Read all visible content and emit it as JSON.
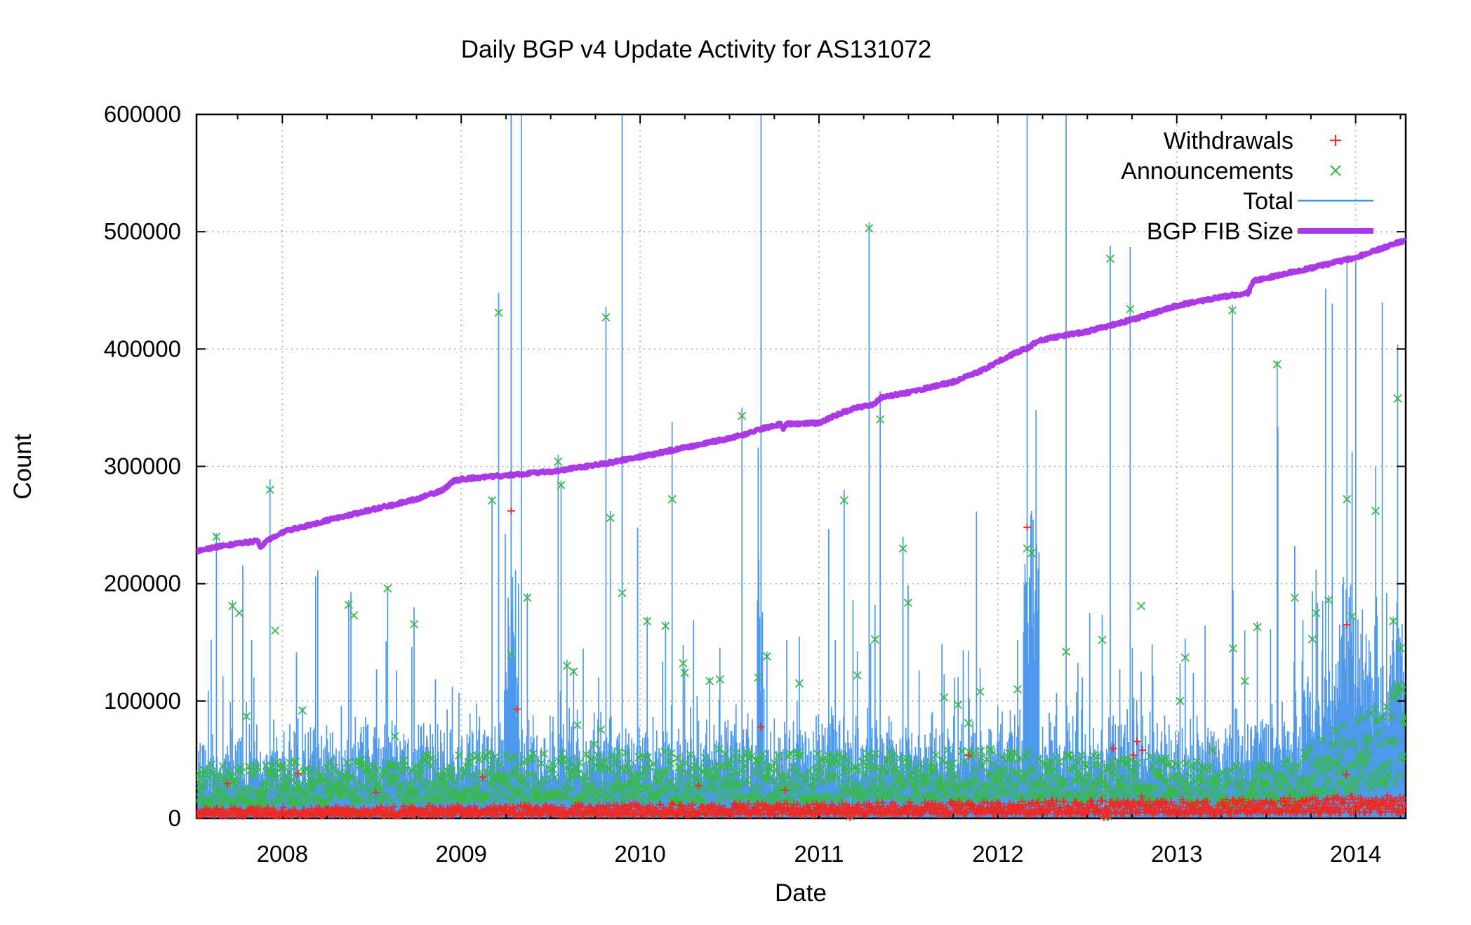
{
  "page": {
    "background": "#ffffff",
    "text_color": "#000000"
  },
  "chart_data": {
    "type": "mixed-impulse-scatter-line",
    "title": "Daily BGP v4 Update Activity for AS131072",
    "xlabel": "Date",
    "ylabel": "Count",
    "xlim": [
      2007.52,
      2014.28
    ],
    "ylim": [
      0,
      600000
    ],
    "x_major_ticks": [
      2008,
      2009,
      2010,
      2011,
      2012,
      2013,
      2014
    ],
    "x_minor_tick_interval": 0.25,
    "y_major_ticks": [
      0,
      100000,
      200000,
      300000,
      400000,
      500000,
      600000
    ],
    "grid": {
      "horizontal_at": [
        100000,
        200000,
        300000,
        400000,
        500000
      ],
      "vertical_at": [
        2008,
        2009,
        2010,
        2011,
        2012,
        2013,
        2014
      ],
      "style": "dotted",
      "color": "#8f8f8f"
    },
    "legend": {
      "position": "top-right-inside",
      "items": [
        {
          "label": "Withdrawals",
          "type": "points",
          "marker": "plus",
          "color": "#ee2a25",
          "width": 2
        },
        {
          "label": "Announcements",
          "type": "points",
          "marker": "cross",
          "color": "#38bb44",
          "width": 2
        },
        {
          "label": "Total",
          "type": "line",
          "marker": null,
          "color": "#4493ea",
          "width": 2
        },
        {
          "label": "BGP FIB Size",
          "type": "line",
          "marker": null,
          "color": "#a93ae6",
          "width": 8
        }
      ]
    },
    "series": {
      "fib_size_keypoints": [
        [
          2007.52,
          228000
        ],
        [
          2007.7,
          233000
        ],
        [
          2007.86,
          236500
        ],
        [
          2007.88,
          231500
        ],
        [
          2007.92,
          237000
        ],
        [
          2008.0,
          244000
        ],
        [
          2008.25,
          254000
        ],
        [
          2008.5,
          263000
        ],
        [
          2008.75,
          272000
        ],
        [
          2008.9,
          280000
        ],
        [
          2008.95,
          287000
        ],
        [
          2009.0,
          289000
        ],
        [
          2009.3,
          293000
        ],
        [
          2009.5,
          295500
        ],
        [
          2009.75,
          301000
        ],
        [
          2010.0,
          308000
        ],
        [
          2010.25,
          316000
        ],
        [
          2010.5,
          324000
        ],
        [
          2010.62,
          329000
        ],
        [
          2010.7,
          333000
        ],
        [
          2010.79,
          336000
        ],
        [
          2010.8,
          331000
        ],
        [
          2010.82,
          336000
        ],
        [
          2011.0,
          337000
        ],
        [
          2011.1,
          344000
        ],
        [
          2011.2,
          350000
        ],
        [
          2011.3,
          352000
        ],
        [
          2011.35,
          359000
        ],
        [
          2011.5,
          363000
        ],
        [
          2011.75,
          372000
        ],
        [
          2011.9,
          381000
        ],
        [
          2012.0,
          389000
        ],
        [
          2012.1,
          397000
        ],
        [
          2012.17,
          401000
        ],
        [
          2012.22,
          407000
        ],
        [
          2012.35,
          411000
        ],
        [
          2012.5,
          415000
        ],
        [
          2012.75,
          425000
        ],
        [
          2013.0,
          437000
        ],
        [
          2013.2,
          443000
        ],
        [
          2013.4,
          448000
        ],
        [
          2013.43,
          458000
        ],
        [
          2013.6,
          464000
        ],
        [
          2013.75,
          469000
        ],
        [
          2014.0,
          478000
        ],
        [
          2014.15,
          486000
        ],
        [
          2014.28,
          493000
        ]
      ],
      "generation": {
        "seed": 1337,
        "step_days": 1.5,
        "withdrawals_levels": [
          [
            2007.52,
            6000
          ],
          [
            2009.0,
            7500
          ],
          [
            2011.0,
            9000
          ],
          [
            2012.5,
            10500
          ],
          [
            2013.5,
            11500
          ],
          [
            2014.28,
            13800
          ]
        ],
        "announcements_levels": [
          [
            2007.52,
            27000
          ],
          [
            2008.5,
            30000
          ],
          [
            2009.2,
            34000
          ],
          [
            2011.0,
            33000
          ],
          [
            2012.0,
            35000
          ],
          [
            2012.9,
            32000
          ],
          [
            2013.3,
            26000
          ],
          [
            2013.65,
            30000
          ],
          [
            2013.95,
            48000
          ],
          [
            2014.28,
            70000
          ]
        ],
        "total_extra_levels": [
          [
            2007.52,
            26000
          ],
          [
            2009.0,
            30000
          ],
          [
            2010.0,
            26000
          ],
          [
            2011.0,
            28000
          ],
          [
            2012.0,
            26000
          ],
          [
            2013.0,
            26000
          ],
          [
            2013.8,
            45000
          ],
          [
            2014.28,
            58000
          ]
        ],
        "fib_jitter": 2600
      },
      "clusters": [
        {
          "from": 2009.24,
          "to": 2009.32,
          "add": 120000
        },
        {
          "from": 2010.655,
          "to": 2010.685,
          "add": 100000
        },
        {
          "from": 2012.14,
          "to": 2012.23,
          "add": 140000
        },
        {
          "from": 2013.91,
          "to": 2013.99,
          "add": 80000
        },
        {
          "from": 2013.7,
          "to": 2014.28,
          "add": 18000
        }
      ],
      "outages": [
        {
          "t": 2011.175
        },
        {
          "t": 2012.59
        },
        {
          "t": 2012.615
        }
      ],
      "spikes": [
        {
          "t": 2007.63,
          "total": 243000,
          "ann": 240000
        },
        {
          "t": 2007.72,
          "total": 186000,
          "ann": 181000
        },
        {
          "t": 2007.76,
          "ann": 175000
        },
        {
          "t": 2007.83,
          "total": 152000
        },
        {
          "t": 2007.93,
          "total": 289000,
          "ann": 280000
        },
        {
          "t": 2007.96,
          "ann": 160000
        },
        {
          "t": 2008.11,
          "total": 95000,
          "ann": 92000
        },
        {
          "t": 2008.37,
          "total": 186000,
          "ann": 182000
        },
        {
          "t": 2008.4,
          "ann": 173000
        },
        {
          "t": 2008.59,
          "total": 198000,
          "ann": 196000
        },
        {
          "t": 2008.95,
          "total": 112000
        },
        {
          "t": 2009.17,
          "total": 274000,
          "ann": 271000
        },
        {
          "t": 2009.21,
          "total": 448000,
          "ann": 431000
        },
        {
          "t": 2009.28,
          "total": 650000,
          "ann": 140000,
          "wd": 262000
        },
        {
          "t": 2009.31,
          "total": 120000,
          "wd": 93000
        },
        {
          "t": 2009.335,
          "total": 650000
        },
        {
          "t": 2009.37,
          "total": 192000,
          "ann": 188000
        },
        {
          "t": 2009.54,
          "total": 310000,
          "ann": 304000
        },
        {
          "t": 2009.56,
          "total": 288000,
          "ann": 284000
        },
        {
          "t": 2009.59,
          "total": 135000,
          "ann": 130000
        },
        {
          "t": 2009.63,
          "total": 128000,
          "ann": 125000
        },
        {
          "t": 2009.81,
          "total": 436000,
          "ann": 427000
        },
        {
          "t": 2009.835,
          "total": 262000,
          "ann": 256000
        },
        {
          "t": 2009.9,
          "total": 650000,
          "ann": 192000
        },
        {
          "t": 2010.04,
          "total": 172000,
          "ann": 168000
        },
        {
          "t": 2010.14,
          "total": 168000,
          "ann": 164000
        },
        {
          "t": 2010.18,
          "total": 338000,
          "ann": 272000
        },
        {
          "t": 2010.25,
          "total": 128000,
          "ann": 124000
        },
        {
          "t": 2010.39,
          "total": 120000,
          "ann": 117000
        },
        {
          "t": 2010.57,
          "total": 350000,
          "ann": 343000
        },
        {
          "t": 2010.66,
          "total": 316000,
          "ann": 120000
        },
        {
          "t": 2010.675,
          "total": 650000,
          "wd": 78000
        },
        {
          "t": 2010.71,
          "total": 142000,
          "ann": 138000
        },
        {
          "t": 2010.82,
          "total": 152000
        },
        {
          "t": 2010.89,
          "total": 155000,
          "ann": 115000
        },
        {
          "t": 2011.09,
          "total": 152000
        },
        {
          "t": 2011.14,
          "total": 280000,
          "ann": 271000
        },
        {
          "t": 2011.19,
          "total": 186000
        },
        {
          "t": 2011.28,
          "total": 508000,
          "ann": 503000
        },
        {
          "t": 2011.34,
          "total": 364000,
          "ann": 340000
        },
        {
          "t": 2011.47,
          "total": 240000,
          "ann": 230000
        },
        {
          "t": 2011.56,
          "total": 126000
        },
        {
          "t": 2011.7,
          "total": 123000,
          "ann": 103000
        },
        {
          "t": 2011.9,
          "total": 128000,
          "ann": 108000
        },
        {
          "t": 2012.0,
          "total": 96000
        },
        {
          "t": 2012.11,
          "total": 152000,
          "ann": 110000
        },
        {
          "t": 2012.165,
          "total": 650000,
          "ann": 230000,
          "wd": 248000
        },
        {
          "t": 2012.19,
          "total": 262000,
          "ann": 226000
        },
        {
          "t": 2012.38,
          "total": 650000,
          "ann": 142000
        },
        {
          "t": 2012.47,
          "total": 120000
        },
        {
          "t": 2012.63,
          "total": 488000,
          "ann": 477000
        },
        {
          "t": 2012.74,
          "total": 487000,
          "ann": 434000
        },
        {
          "t": 2012.8,
          "total": 125000
        },
        {
          "t": 2013.02,
          "total": 132000,
          "ann": 100000
        },
        {
          "t": 2013.31,
          "total": 438000,
          "ann": 433000
        },
        {
          "t": 2013.45,
          "total": 168000,
          "ann": 163000
        },
        {
          "t": 2013.56,
          "total": 390000,
          "ann": 387000
        },
        {
          "t": 2013.66,
          "total": 232000,
          "ann": 188000
        },
        {
          "t": 2013.78,
          "total": 212000,
          "ann": 175000
        },
        {
          "t": 2013.85,
          "total": 190000,
          "ann": 186000
        },
        {
          "t": 2013.95,
          "total": 480000,
          "ann": 272000,
          "wd": 165000
        },
        {
          "t": 2014.11,
          "total": 300000,
          "ann": 262000
        },
        {
          "t": 2014.21,
          "total": 172000,
          "ann": 168000
        },
        {
          "t": 2014.25,
          "total": 150000,
          "ann": 145000
        }
      ]
    }
  }
}
